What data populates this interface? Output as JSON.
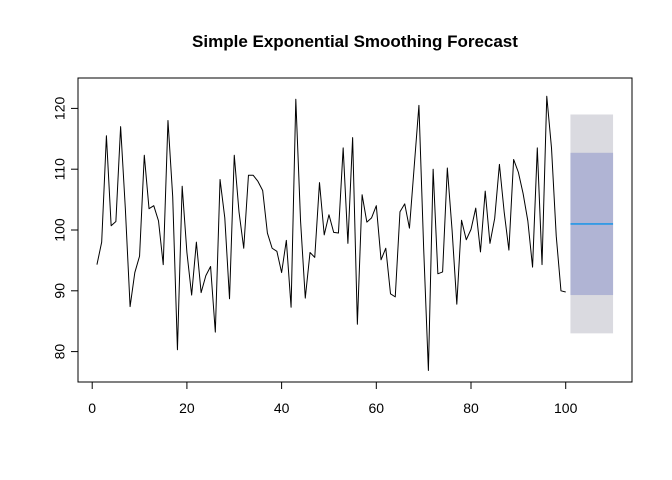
{
  "chart_data": {
    "type": "line",
    "title": "Simple Exponential Smoothing Forecast",
    "xlabel": "",
    "ylabel": "",
    "xlim": [
      -3,
      114
    ],
    "ylim": [
      75,
      125
    ],
    "x_ticks": [
      0,
      20,
      40,
      60,
      80,
      100
    ],
    "y_ticks": [
      80,
      90,
      100,
      110,
      120
    ],
    "grid": false,
    "legend": "none",
    "series": [
      {
        "color": "#000000",
        "x": [
          1,
          2,
          3,
          4,
          5,
          6,
          7,
          8,
          9,
          10,
          11,
          12,
          13,
          14,
          15,
          16,
          17,
          18,
          19,
          20,
          21,
          22,
          23,
          24,
          25,
          26,
          27,
          28,
          29,
          30,
          31,
          32,
          33,
          34,
          35,
          36,
          37,
          38,
          39,
          40,
          41,
          42,
          43,
          44,
          45,
          46,
          47,
          48,
          49,
          50,
          51,
          52,
          53,
          54,
          55,
          56,
          57,
          58,
          59,
          60,
          61,
          62,
          63,
          64,
          65,
          66,
          67,
          68,
          69,
          70,
          71,
          72,
          73,
          74,
          75,
          76,
          77,
          78,
          79,
          80,
          81,
          82,
          83,
          84,
          85,
          86,
          87,
          88,
          89,
          90,
          91,
          92,
          93,
          94,
          95,
          96,
          97,
          98,
          99,
          100
        ],
        "values": [
          94.3,
          98.0,
          115.5,
          100.7,
          101.4,
          117.0,
          103.5,
          87.4,
          93.0,
          95.7,
          112.3,
          103.5,
          104.0,
          101.5,
          94.3,
          118.0,
          105.5,
          80.3,
          107.2,
          96.3,
          89.3,
          98.0,
          89.7,
          92.5,
          94.0,
          83.2,
          108.3,
          102.0,
          88.7,
          112.3,
          103.0,
          97.0,
          109.0,
          109.0,
          108.0,
          106.5,
          99.5,
          97.0,
          96.5,
          93.0,
          98.3,
          87.3,
          121.5,
          101.5,
          88.8,
          96.3,
          95.5,
          107.8,
          99.2,
          102.5,
          99.6,
          99.5,
          113.5,
          97.8,
          115.2,
          84.5,
          105.8,
          101.3,
          102.0,
          104.0,
          95.1,
          97.0,
          89.5,
          89.0,
          103.0,
          104.3,
          100.3,
          110.4,
          120.5,
          97.0,
          76.9,
          110.0,
          92.8,
          93.1,
          110.2,
          100.0,
          87.8,
          101.6,
          98.4,
          100.1,
          103.6,
          96.4,
          106.4,
          97.8,
          101.9,
          110.8,
          103.0,
          96.7,
          111.6,
          109.5,
          106.0,
          101.5,
          93.9,
          113.5,
          94.3,
          122.0,
          113.5,
          99.0,
          90.0,
          89.8
        ]
      },
      {
        "color": "#2297e6",
        "x": [
          101,
          110
        ],
        "values": [
          101.0,
          101.0
        ]
      }
    ],
    "intervals": [
      {
        "color": "#dadae0",
        "x": [
          101,
          110
        ],
        "lower": 83.0,
        "upper": 119.0
      },
      {
        "color": "#b0b4d4",
        "x": [
          101,
          110
        ],
        "lower": 89.3,
        "upper": 112.7
      }
    ]
  }
}
